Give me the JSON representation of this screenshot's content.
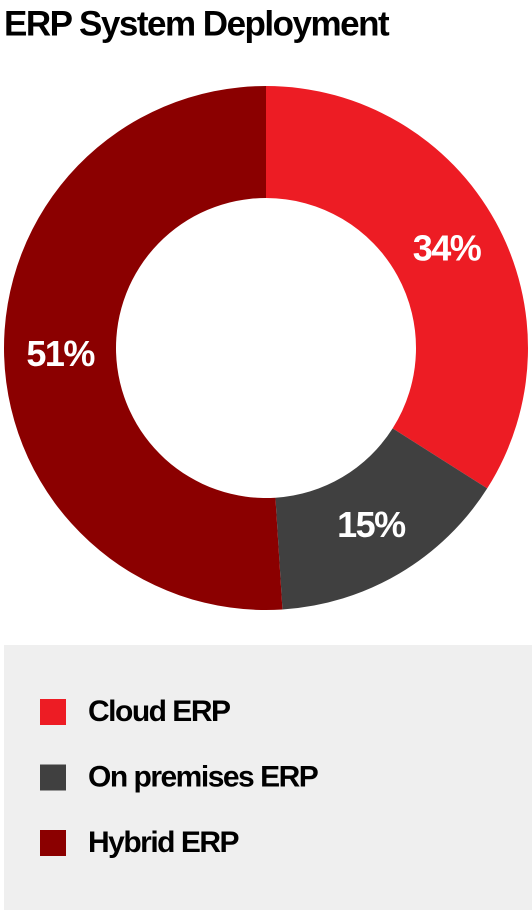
{
  "chart_data": {
    "type": "donut",
    "title": "ERP System Deployment",
    "categories": [
      "Cloud ERP",
      "On premises ERP",
      "Hybrid ERP"
    ],
    "values": [
      34,
      15,
      51
    ],
    "value_labels": [
      "34%",
      "15%",
      "51%"
    ],
    "colors": [
      "#ed1c24",
      "#404040",
      "#8b0000"
    ]
  }
}
